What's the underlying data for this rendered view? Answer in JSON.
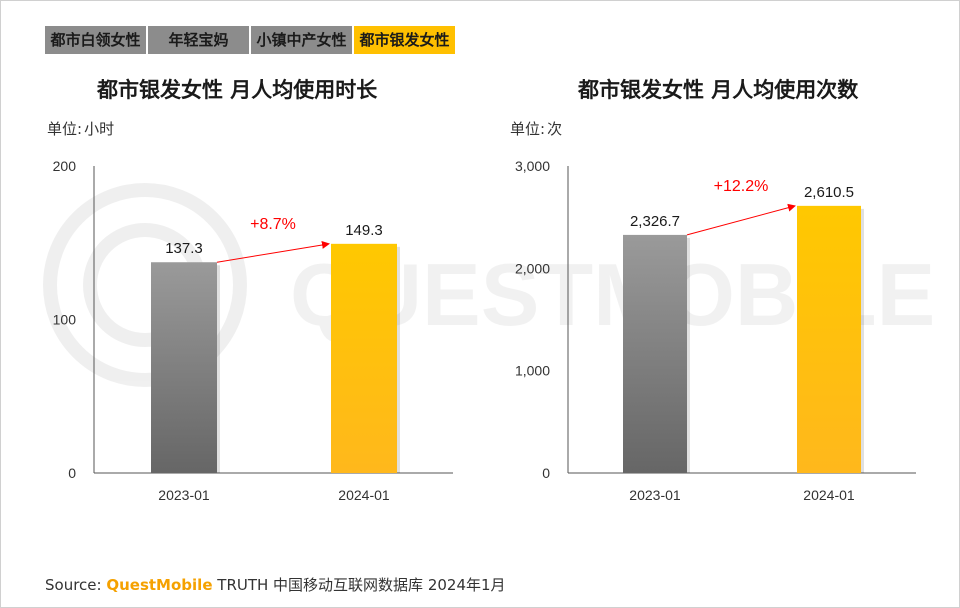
{
  "tabs": [
    {
      "label": "都市白领女性",
      "active": false
    },
    {
      "label": "年轻宝妈",
      "active": false
    },
    {
      "label": "小镇中产女性",
      "active": false
    },
    {
      "label": "都市银发女性",
      "active": true
    }
  ],
  "watermark": "QUESTMOBILE",
  "colors": {
    "bar_2023": "#6e6e6e",
    "bar_2024": "#ffc000",
    "growth": "#ff0000",
    "axis": "#333333"
  },
  "chart_data": [
    {
      "type": "bar",
      "title": "都市银发女性 月人均使用时长",
      "unit_label": "单位:",
      "unit_value": "小时",
      "categories": [
        "2023-01",
        "2024-01"
      ],
      "values": [
        137.3,
        149.3
      ],
      "value_labels": [
        "137.3",
        "149.3"
      ],
      "ylim": [
        0,
        200
      ],
      "yticks": [
        0,
        100,
        200
      ],
      "ytick_labels": [
        "0",
        "100",
        "200"
      ],
      "growth_label": "+8.7%"
    },
    {
      "type": "bar",
      "title": "都市银发女性 月人均使用次数",
      "unit_label": "单位:",
      "unit_value": "次",
      "categories": [
        "2023-01",
        "2024-01"
      ],
      "values": [
        2326.7,
        2610.5
      ],
      "value_labels": [
        "2,326.7",
        "2,610.5"
      ],
      "ylim": [
        0,
        3000
      ],
      "yticks": [
        0,
        1000,
        2000,
        3000
      ],
      "ytick_labels": [
        "0",
        "1,000",
        "2,000",
        "3,000"
      ],
      "growth_label": "+12.2%"
    }
  ],
  "source": {
    "prefix": "Source:",
    "brand": "QuestMobile",
    "text": "TRUTH 中国移动互联网数据库 2024年1月"
  }
}
